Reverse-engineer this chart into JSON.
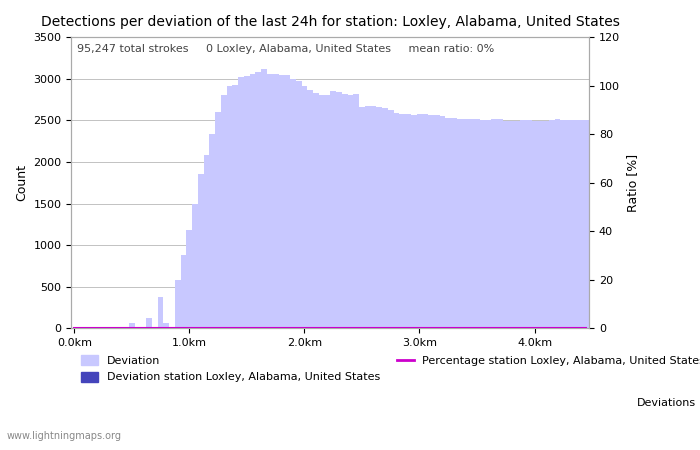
{
  "title": "Detections per deviation of the last 24h for station: Loxley, Alabama, United States",
  "annotation": "95,247 total strokes     0 Loxley, Alabama, United States     mean ratio: 0%",
  "xlabel_left": "Count",
  "xlabel_right": "Ratio [%]",
  "watermark": "www.lightningmaps.org",
  "bar_values": [
    0,
    0,
    0,
    0,
    0,
    0,
    0,
    0,
    0,
    0,
    60,
    0,
    0,
    130,
    0,
    380,
    60,
    0,
    580,
    880,
    1180,
    1500,
    1850,
    2080,
    2340,
    2600,
    2800,
    2910,
    2920,
    3020,
    3030,
    3060,
    3080,
    3120,
    3060,
    3060,
    3040,
    3040,
    3000,
    2970,
    2910,
    2860,
    2830,
    2800,
    2810,
    2850,
    2840,
    2820,
    2800,
    2820,
    2660,
    2670,
    2670,
    2660,
    2650,
    2620,
    2590,
    2580,
    2570,
    2560,
    2570,
    2580,
    2560,
    2560,
    2550,
    2530,
    2530,
    2520,
    2520,
    2510,
    2520,
    2500,
    2500,
    2510,
    2520,
    2490,
    2490,
    2490,
    2500,
    2500,
    2490,
    2490,
    2495,
    2500,
    2510,
    2500,
    2500,
    2500,
    2500,
    2500
  ],
  "station_bar_values": [
    0,
    0,
    0,
    0,
    0,
    0,
    0,
    0,
    0,
    0,
    0,
    0,
    0,
    0,
    0,
    0,
    0,
    0,
    0,
    0,
    0,
    0,
    0,
    0,
    0,
    0,
    0,
    0,
    0,
    0,
    0,
    0,
    0,
    0,
    0,
    0,
    0,
    0,
    0,
    0,
    0,
    0,
    0,
    0,
    0,
    0,
    0,
    0,
    0,
    0,
    0,
    0,
    0,
    0,
    0,
    0,
    0,
    0,
    0,
    0,
    0,
    0,
    0,
    0,
    0,
    0,
    0,
    0,
    0,
    0,
    0,
    0,
    0,
    0,
    0,
    0,
    0,
    0,
    0,
    0,
    0,
    0,
    0,
    0,
    0,
    0,
    0,
    0,
    0,
    0
  ],
  "ratio_values": [
    0,
    0,
    0,
    0,
    0,
    0,
    0,
    0,
    0,
    0,
    0,
    0,
    0,
    0,
    0,
    0,
    0,
    0,
    0,
    0,
    0,
    0,
    0,
    0,
    0,
    0,
    0,
    0,
    0,
    0,
    0,
    0,
    0,
    0,
    0,
    0,
    0,
    0,
    0,
    0,
    0,
    0,
    0,
    0,
    0,
    0,
    0,
    0,
    0,
    0,
    0,
    0,
    0,
    0,
    0,
    0,
    0,
    0,
    0,
    0,
    0,
    0,
    0,
    0,
    0,
    0,
    0,
    0,
    0,
    0,
    0,
    0,
    0,
    0,
    0,
    0,
    0,
    0,
    0,
    0,
    0,
    0,
    0,
    0,
    0,
    0,
    0,
    0,
    0,
    0
  ],
  "n_bars": 90,
  "x_step_km": 0.05,
  "ylim_left": [
    0,
    3500
  ],
  "ylim_right": [
    0,
    120
  ],
  "yticks_left": [
    0,
    500,
    1000,
    1500,
    2000,
    2500,
    3000,
    3500
  ],
  "yticks_right": [
    0,
    20,
    40,
    60,
    80,
    100,
    120
  ],
  "xtick_labels": [
    "0.0km",
    "1.0km",
    "2.0km",
    "3.0km",
    "4.0km"
  ],
  "xtick_positions": [
    0,
    20,
    40,
    60,
    80
  ],
  "bar_color": "#c8c8ff",
  "bar_color_station": "#4444bb",
  "ratio_color": "#cc00cc",
  "grid_color": "#aaaaaa",
  "bg_color": "#ffffff",
  "title_fontsize": 10,
  "legend_fontsize": 8,
  "annotation_fontsize": 8
}
